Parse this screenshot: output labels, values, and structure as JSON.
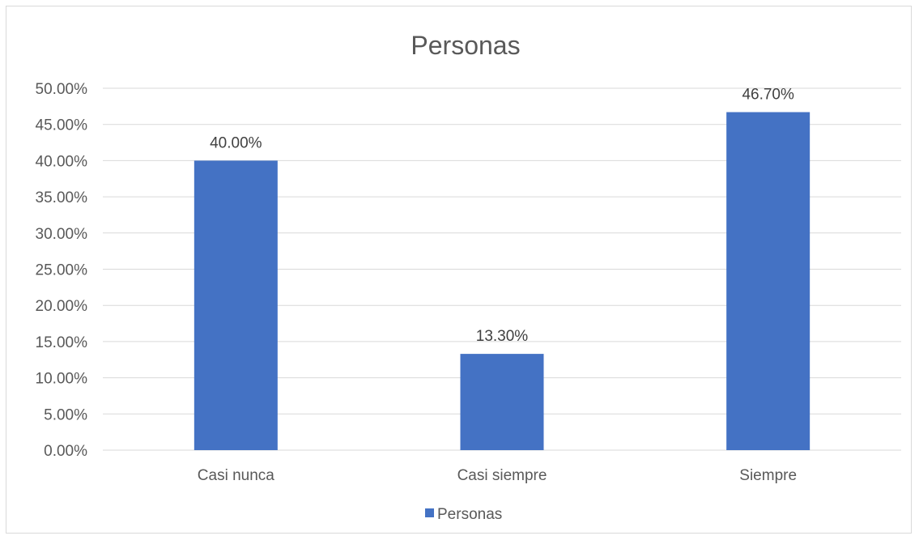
{
  "chart_data": {
    "type": "bar",
    "title": "Personas",
    "xlabel": "",
    "ylabel": "",
    "categories": [
      "Casi nunca",
      "Casi siempre",
      "Siempre"
    ],
    "series": [
      {
        "name": "Personas",
        "values": [
          40.0,
          13.3,
          46.7
        ],
        "labels": [
          "40.00%",
          "13.30%",
          "46.70%"
        ],
        "color": "#4472c4"
      }
    ],
    "ylim": [
      0,
      50
    ],
    "yticks": [
      "0.00%",
      "5.00%",
      "10.00%",
      "15.00%",
      "20.00%",
      "25.00%",
      "30.00%",
      "35.00%",
      "40.00%",
      "45.00%",
      "50.00%"
    ],
    "grid": true,
    "legend": "bottom"
  }
}
